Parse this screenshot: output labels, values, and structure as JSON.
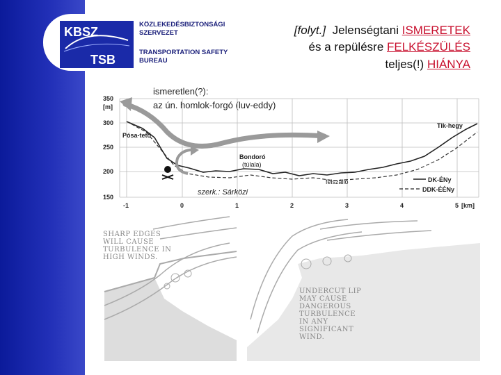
{
  "org": {
    "kbsz": "KBSZ",
    "tsb": "TSB",
    "line1": "KÖZLEKEDÉSBIZTONSÁGI",
    "line2": "SZERVEZET",
    "line3": "TRANSPORTATION SAFETY",
    "line4": "BUREAU"
  },
  "heading": {
    "line1_prefix": "[folyt.]",
    "line1_main": "Jelenségtani ",
    "line1_strong": "ISMERETEK",
    "line2_main": "és a repülésre ",
    "line2_strong": "FELKÉSZÜLÉS",
    "line3_main": "teljes(!) ",
    "line3_strong": "HIÁNYA"
  },
  "note": {
    "line1": "ismeretlen(?):",
    "line2": "az ún. homlok-forgó (luv-eddy)"
  },
  "profile": {
    "y_unit": "[m]",
    "y_ticks": [
      "350",
      "300",
      "250",
      "200",
      "150"
    ],
    "x_ticks": [
      "-1",
      "0",
      "1",
      "2",
      "3",
      "4",
      "5"
    ],
    "x_unit": "[km]",
    "labels": {
      "posa": "Pósa-tető",
      "bondoro": "Bondoró",
      "bondoro_sub": "(túlala)",
      "tik": "Tik-hegy",
      "felszallo": "felszálló",
      "dk": "DK-ÉNy",
      "ddk": "DDK-ÉÉNy",
      "credit": "szerk.: Sárközi"
    }
  },
  "sketch": {
    "left_text": [
      "SHARP EDGES",
      "WILL CAUSE",
      "TURBULENCE IN",
      "HIGH WINDS."
    ],
    "right_text": [
      "UNDERCUT LIP",
      "MAY CAUSE",
      "DANGEROUS",
      "TURBULENCE",
      "IN ANY",
      "SIGNIFICANT",
      "WIND."
    ]
  }
}
